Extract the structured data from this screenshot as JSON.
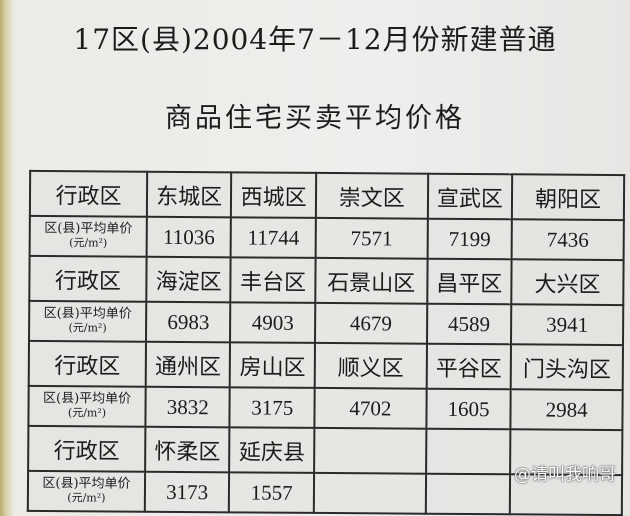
{
  "title_line1": "17区(县)2004年7－12月份新建普通",
  "title_line2": "商品住宅买卖平均价格",
  "row_label_district": "行政区",
  "row_label_price": "区(县)平均单价",
  "row_label_unit": "(元/m²)",
  "groups": [
    {
      "districts": [
        "东城区",
        "西城区",
        "崇文区",
        "宣武区",
        "朝阳区"
      ],
      "prices": [
        "11036",
        "11744",
        "7571",
        "7199",
        "7436"
      ]
    },
    {
      "districts": [
        "海淀区",
        "丰台区",
        "石景山区",
        "昌平区",
        "大兴区"
      ],
      "prices": [
        "6983",
        "4903",
        "4679",
        "4589",
        "3941"
      ]
    },
    {
      "districts": [
        "通州区",
        "房山区",
        "顺义区",
        "平谷区",
        "门头沟区"
      ],
      "prices": [
        "3832",
        "3175",
        "4702",
        "1605",
        "2984"
      ]
    },
    {
      "districts": [
        "怀柔区",
        "延庆县",
        "",
        "",
        ""
      ],
      "prices": [
        "3173",
        "1557",
        "",
        "",
        ""
      ]
    }
  ],
  "watermark": "@请叫我响哥"
}
